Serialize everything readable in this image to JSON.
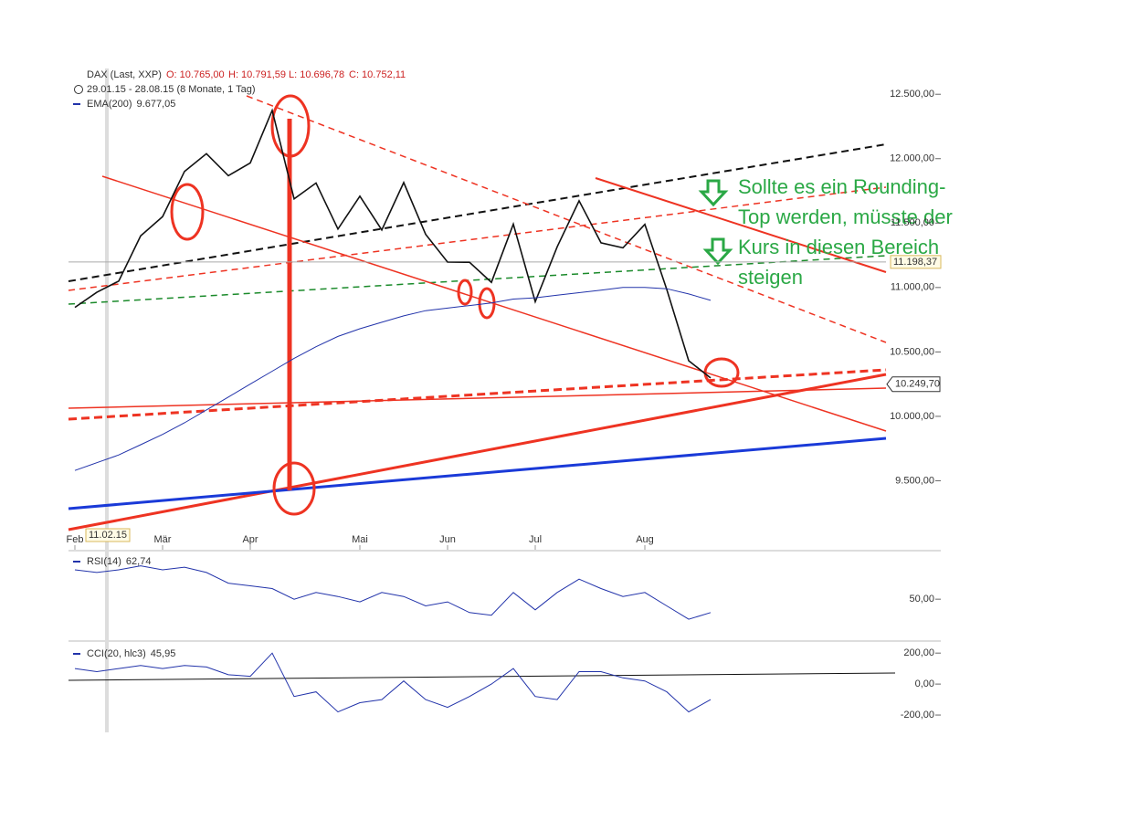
{
  "chart_data": [
    {
      "type": "line",
      "title": "DAX (Last, XXP)",
      "ohlc": [
        "O: 10.765,00",
        "H: 10.791,59",
        "L: 10.696,78",
        "C: 10.752,11"
      ],
      "subtitle": "29.01.15 - 28.08.15 (8 Monate, 1 Tag)",
      "date_tag": "11.02.15",
      "annotation": [
        "Sollte es ein Rounding-",
        "Top werden, müsste der",
        "Kurs in diesen Bereich",
        "steigen"
      ],
      "categories": [
        "Feb",
        null,
        null,
        null,
        "Mär",
        null,
        null,
        null,
        "Apr",
        null,
        null,
        null,
        null,
        "Mai",
        null,
        null,
        null,
        "Jun",
        null,
        null,
        null,
        "Jul",
        null,
        null,
        null,
        null,
        "Aug",
        null,
        null,
        null,
        null,
        null,
        null,
        null,
        null,
        null,
        null,
        null
      ],
      "series": [
        {
          "name": "DAX",
          "color": "#111111",
          "values": [
            10846,
            10963,
            11050,
            11401,
            11550,
            11901,
            12039,
            11868,
            11967,
            12375,
            11688,
            11811,
            11454,
            11709,
            11447,
            11815,
            11413,
            11197,
            11196,
            11040,
            11492,
            10890,
            11316,
            11673,
            11347,
            11308,
            11490,
            10985,
            10432,
            10298,
            null,
            null,
            null,
            null,
            null,
            null,
            null,
            null
          ]
        },
        {
          "name": "EMA(200)",
          "legend_value": "9.677,05",
          "color": "#2233aa",
          "values": [
            9580,
            9640,
            9700,
            9780,
            9860,
            9950,
            10050,
            10150,
            10250,
            10350,
            10450,
            10540,
            10620,
            10680,
            10730,
            10780,
            10820,
            10840,
            10860,
            10880,
            10910,
            10920,
            10940,
            10960,
            10980,
            11000,
            11000,
            10990,
            10950,
            10900,
            null,
            null,
            null,
            null,
            null,
            null,
            null,
            null
          ]
        }
      ],
      "last_value": 10249.7,
      "last_label": "10.249,70",
      "hline_value": 11198.37,
      "hline_label": "11.198,37",
      "ylim": [
        9000,
        12700
      ],
      "yticks": [
        {
          "value": 9500,
          "label": "9.500,00"
        },
        {
          "value": 10000,
          "label": "10.000,00"
        },
        {
          "value": 10500,
          "label": "10.500,00"
        },
        {
          "value": 11000,
          "label": "11.000,00"
        },
        {
          "value": 11500,
          "label": "11.500,00"
        },
        {
          "value": 12000,
          "label": "12.000,00"
        },
        {
          "value": 12500,
          "label": "12.500,00"
        }
      ]
    },
    {
      "type": "line",
      "series": [
        {
          "name": "RSI(14)",
          "legend_value": "62,74",
          "color": "#2233aa",
          "values": [
            72,
            70,
            72,
            75,
            72,
            74,
            70,
            62,
            60,
            58,
            50,
            55,
            52,
            48,
            55,
            52,
            45,
            48,
            40,
            38,
            55,
            42,
            55,
            65,
            58,
            52,
            55,
            45,
            35,
            40
          ]
        }
      ],
      "ylim": [
        20,
        85
      ],
      "yticks": [
        {
          "value": 50,
          "label": "50,00"
        }
      ]
    },
    {
      "type": "line",
      "series": [
        {
          "name": "CCI(20, hlc3)",
          "legend_value": "45,95",
          "color": "#2233aa",
          "values": [
            100,
            80,
            100,
            120,
            100,
            120,
            110,
            60,
            50,
            200,
            -80,
            -50,
            -180,
            -120,
            -100,
            20,
            -100,
            -150,
            -80,
            0,
            100,
            -80,
            -100,
            80,
            80,
            40,
            20,
            -50,
            -180,
            -100
          ]
        }
      ],
      "ylim": [
        -300,
        260
      ],
      "yticks": [
        {
          "value": -200,
          "label": "-200,00"
        },
        {
          "value": 0,
          "label": "0,00"
        },
        {
          "value": 200,
          "label": "200,00"
        }
      ]
    }
  ]
}
